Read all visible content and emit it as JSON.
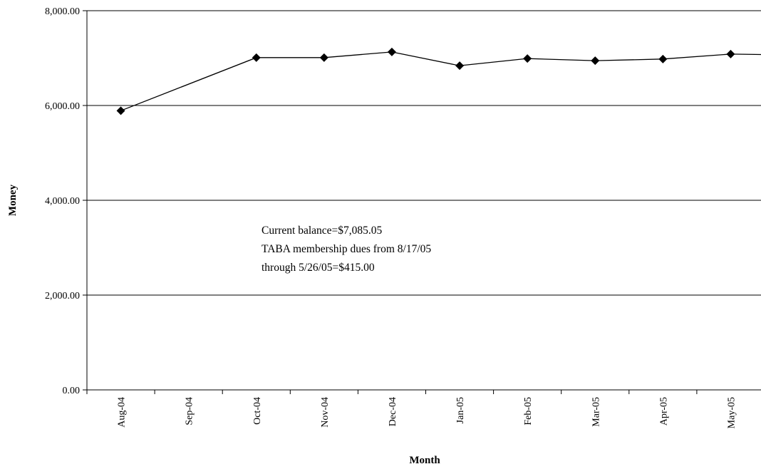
{
  "chart_data": {
    "type": "line",
    "title": "",
    "xlabel": "Month",
    "ylabel": "Money",
    "categories": [
      "Aug-04",
      "Sep-04",
      "Oct-04",
      "Nov-04",
      "Dec-04",
      "Jan-05",
      "Feb-05",
      "Mar-05",
      "Apr-05",
      "May-05"
    ],
    "series": [
      {
        "points": [
          {
            "x": "Aug-04",
            "y": 5890
          },
          {
            "x": "Oct-04",
            "y": 7010
          },
          {
            "x": "Nov-04",
            "y": 7010
          },
          {
            "x": "Dec-04",
            "y": 7130
          },
          {
            "x": "Jan-05",
            "y": 6840
          },
          {
            "x": "Feb-05",
            "y": 6990
          },
          {
            "x": "Mar-05",
            "y": 6945
          },
          {
            "x": "Apr-05",
            "y": 6980
          },
          {
            "x": "May-05",
            "y": 7085.05
          }
        ],
        "tail_value": 7075
      }
    ],
    "ylim": [
      0,
      8000
    ],
    "yticks": [
      "0.00",
      "2,000.00",
      "4,000.00",
      "6,000.00",
      "8,000.00"
    ],
    "ytick_values": [
      0,
      2000,
      4000,
      6000,
      8000
    ],
    "grid": true,
    "legend": "none",
    "annotation": {
      "lines": [
        "Current balance=$7,085.05",
        "TABA membership dues from 8/17/05",
        "through 5/26/05=$415.00"
      ]
    },
    "colors": {
      "line": "#000000",
      "marker": "#000000",
      "grid": "#000000"
    }
  }
}
